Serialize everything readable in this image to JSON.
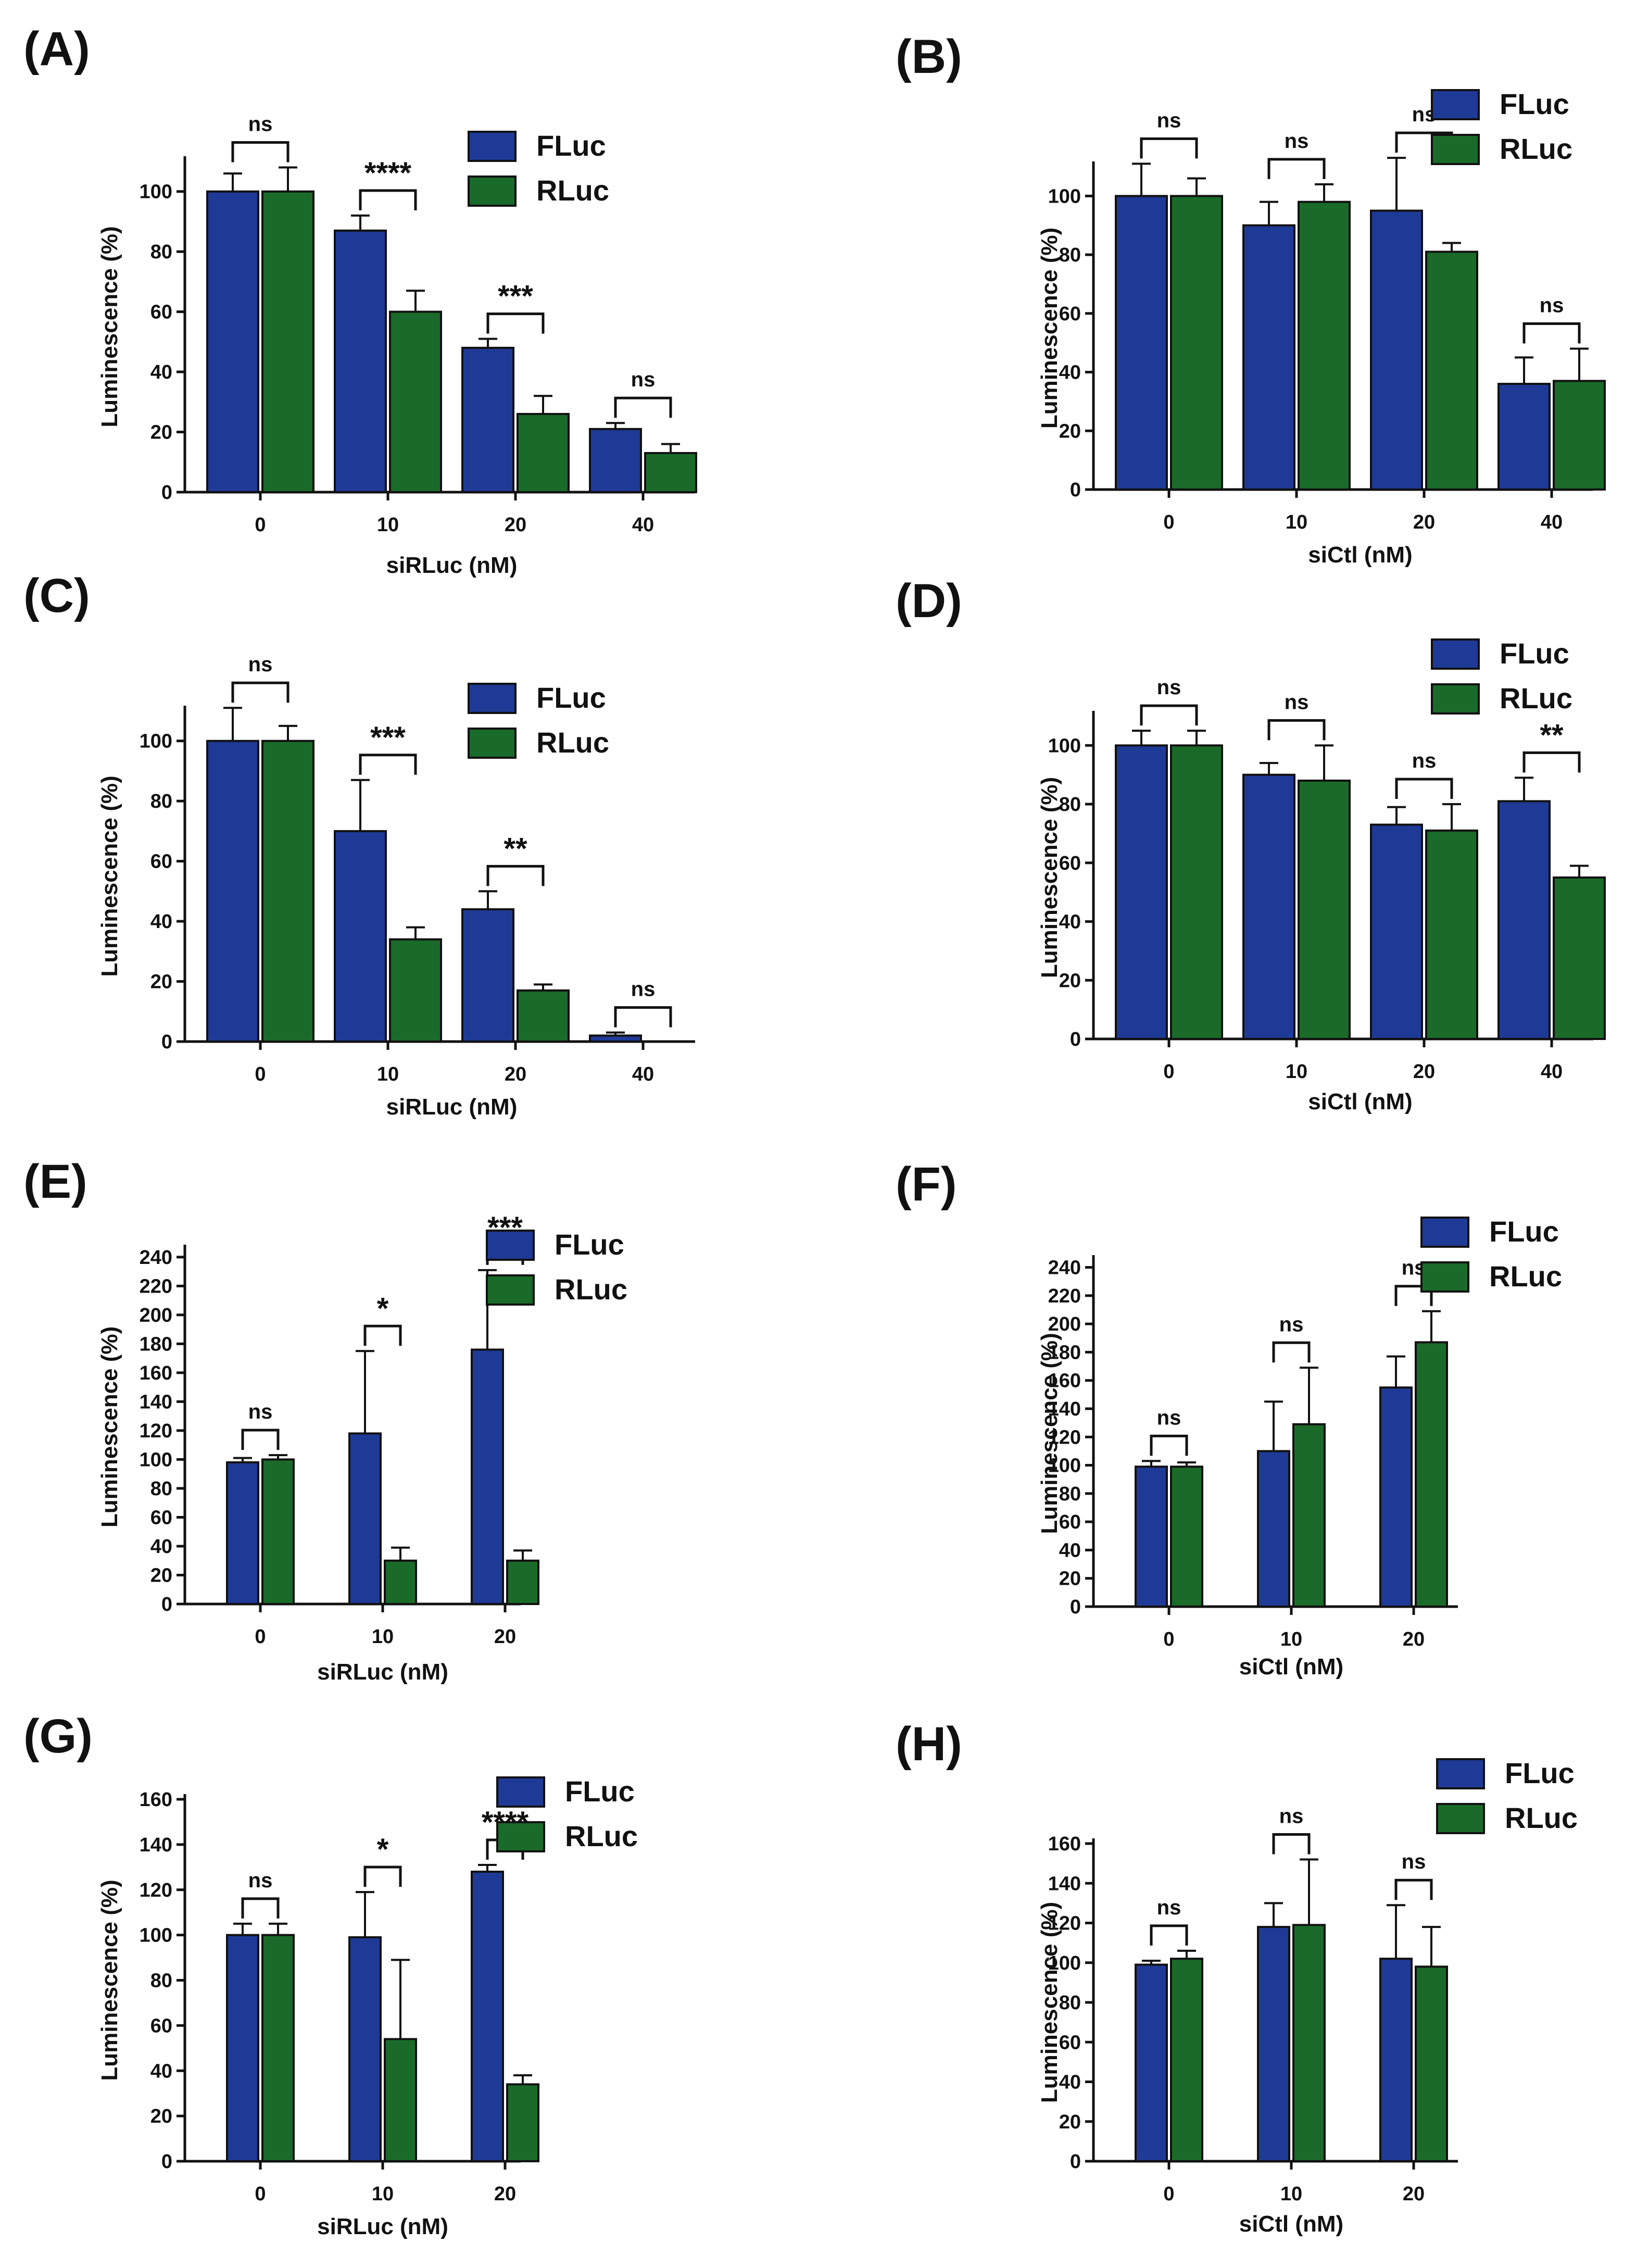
{
  "colors": {
    "FLuc": "#1f3a96",
    "RLuc": "#1a6b2a"
  },
  "chart_data": [
    {
      "panel": "(A)",
      "type": "bar",
      "xlabel": "siRLuc (nM)",
      "ylabel": "Luminescence (%)",
      "categories": [
        "0",
        "10",
        "20",
        "40"
      ],
      "ylim": [
        0,
        110
      ],
      "yticks": [
        "0",
        "20",
        "40",
        "60",
        "80",
        "100"
      ],
      "series": [
        {
          "name": "FLuc",
          "values": [
            100,
            87,
            48,
            21
          ],
          "errors": [
            6,
            5,
            3,
            2
          ]
        },
        {
          "name": "RLuc",
          "values": [
            100,
            60,
            26,
            13
          ],
          "errors": [
            8,
            7,
            6,
            3
          ]
        }
      ],
      "significance": [
        "ns",
        "****",
        "***",
        "ns"
      ],
      "legend": "top-right"
    },
    {
      "panel": "(B)",
      "type": "bar",
      "xlabel": "siCtl (nM)",
      "ylabel": "Luminescence (%)",
      "categories": [
        "0",
        "10",
        "20",
        "40"
      ],
      "ylim": [
        0,
        110
      ],
      "yticks": [
        "0",
        "20",
        "40",
        "60",
        "80",
        "100"
      ],
      "series": [
        {
          "name": "FLuc",
          "values": [
            100,
            90,
            95,
            36
          ],
          "errors": [
            11,
            8,
            18,
            9
          ]
        },
        {
          "name": "RLuc",
          "values": [
            100,
            98,
            81,
            37
          ],
          "errors": [
            6,
            6,
            3,
            11
          ]
        }
      ],
      "significance": [
        "ns",
        "ns",
        "ns",
        "ns"
      ],
      "legend": "top-right"
    },
    {
      "panel": "(C)",
      "type": "bar",
      "xlabel": "siRLuc (nM)",
      "ylabel": "Luminescence (%)",
      "categories": [
        "0",
        "10",
        "20",
        "40"
      ],
      "ylim": [
        0,
        110
      ],
      "yticks": [
        "0",
        "20",
        "40",
        "60",
        "80",
        "100"
      ],
      "series": [
        {
          "name": "FLuc",
          "values": [
            100,
            70,
            44,
            2
          ],
          "errors": [
            11,
            17,
            6,
            1
          ]
        },
        {
          "name": "RLuc",
          "values": [
            100,
            34,
            17,
            0
          ],
          "errors": [
            5,
            4,
            2,
            0
          ]
        }
      ],
      "significance": [
        "ns",
        "***",
        "**",
        "ns"
      ],
      "legend": "top-right"
    },
    {
      "panel": "(D)",
      "type": "bar",
      "xlabel": "siCtl (nM)",
      "ylabel": "Luminescence (%)",
      "categories": [
        "0",
        "10",
        "20",
        "40"
      ],
      "ylim": [
        0,
        110
      ],
      "yticks": [
        "0",
        "20",
        "40",
        "60",
        "80",
        "100"
      ],
      "series": [
        {
          "name": "FLuc",
          "values": [
            100,
            90,
            73,
            81
          ],
          "errors": [
            5,
            4,
            6,
            8
          ]
        },
        {
          "name": "RLuc",
          "values": [
            100,
            88,
            71,
            55
          ],
          "errors": [
            5,
            12,
            9,
            4
          ]
        }
      ],
      "significance": [
        "ns",
        "ns",
        "ns",
        "**"
      ],
      "legend": "top-right"
    },
    {
      "panel": "(E)",
      "type": "bar",
      "xlabel": "siRLuc (nM)",
      "ylabel": "Luminescence (%)",
      "categories": [
        "0",
        "10",
        "20"
      ],
      "ylim": [
        0,
        245
      ],
      "yticks": [
        "0",
        "20",
        "40",
        "60",
        "80",
        "100",
        "120",
        "140",
        "160",
        "180",
        "200",
        "220",
        "240"
      ],
      "series": [
        {
          "name": "FLuc",
          "values": [
            98,
            118,
            176
          ],
          "errors": [
            3,
            57,
            55
          ]
        },
        {
          "name": "RLuc",
          "values": [
            100,
            30,
            30
          ],
          "errors": [
            3,
            9,
            7
          ]
        }
      ],
      "significance": [
        "ns",
        "*",
        "***"
      ],
      "legend": "top-right"
    },
    {
      "panel": "(F)",
      "type": "bar",
      "xlabel": "siCtl (nM)",
      "ylabel": "Luminescence (%)",
      "categories": [
        "0",
        "10",
        "20"
      ],
      "ylim": [
        0,
        245
      ],
      "yticks": [
        "0",
        "20",
        "40",
        "60",
        "80",
        "100",
        "120",
        "140",
        "160",
        "180",
        "200",
        "220",
        "240"
      ],
      "series": [
        {
          "name": "FLuc",
          "values": [
            99,
            110,
            155
          ],
          "errors": [
            4,
            35,
            22
          ]
        },
        {
          "name": "RLuc",
          "values": [
            99,
            129,
            187
          ],
          "errors": [
            3,
            40,
            22
          ]
        }
      ],
      "significance": [
        "ns",
        "ns",
        "ns"
      ],
      "legend": "top-right"
    },
    {
      "panel": "(G)",
      "type": "bar",
      "xlabel": "siRLuc (nM)",
      "ylabel": "Luminescence (%)",
      "categories": [
        "0",
        "10",
        "20"
      ],
      "ylim": [
        0,
        160
      ],
      "yticks": [
        "0",
        "20",
        "40",
        "60",
        "80",
        "100",
        "120",
        "140",
        "160"
      ],
      "series": [
        {
          "name": "FLuc",
          "values": [
            100,
            99,
            128
          ],
          "errors": [
            5,
            20,
            3
          ]
        },
        {
          "name": "RLuc",
          "values": [
            100,
            54,
            34
          ],
          "errors": [
            5,
            35,
            4
          ]
        }
      ],
      "significance": [
        "ns",
        "*",
        "****"
      ],
      "legend": "top-right"
    },
    {
      "panel": "(H)",
      "type": "bar",
      "xlabel": "siCtl (nM)",
      "ylabel": "Luminescence (%)",
      "categories": [
        "0",
        "10",
        "20"
      ],
      "ylim": [
        0,
        160
      ],
      "yticks": [
        "0",
        "20",
        "40",
        "60",
        "80",
        "100",
        "120",
        "140",
        "160"
      ],
      "series": [
        {
          "name": "FLuc",
          "values": [
            99,
            118,
            102
          ],
          "errors": [
            2,
            12,
            27
          ]
        },
        {
          "name": "RLuc",
          "values": [
            102,
            119,
            98
          ],
          "errors": [
            4,
            33,
            20
          ]
        }
      ],
      "significance": [
        "ns",
        "ns",
        "ns"
      ],
      "legend": "top-right"
    }
  ]
}
